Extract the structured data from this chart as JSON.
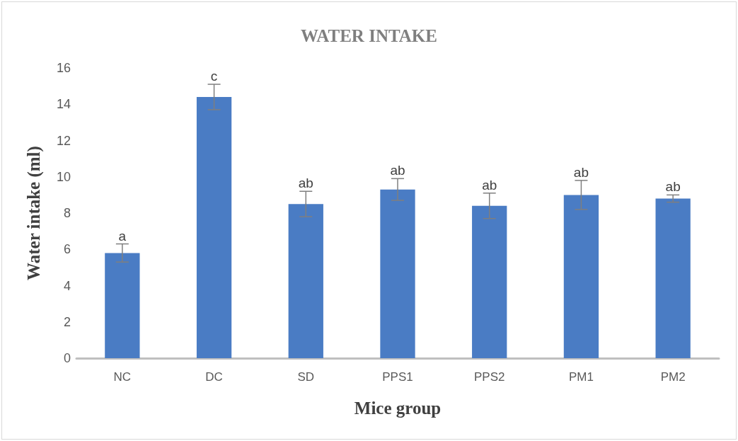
{
  "chart_data": {
    "type": "bar",
    "title": "WATER INTAKE",
    "xlabel": "Mice group",
    "ylabel": "Water intake (ml)",
    "categories": [
      "NC",
      "DC",
      "SD",
      "PPS1",
      "PPS2",
      "PM1",
      "PM2"
    ],
    "values": [
      5.8,
      14.4,
      8.5,
      9.3,
      8.4,
      9.0,
      8.8
    ],
    "errors": [
      0.5,
      0.7,
      0.7,
      0.6,
      0.7,
      0.8,
      0.2
    ],
    "color": "#4a7cc4",
    "ylim": [
      0,
      16
    ],
    "yticks": [
      0,
      2,
      4,
      6,
      8,
      10,
      12,
      14,
      16
    ],
    "grid": false,
    "annotations": [
      "a",
      "c",
      "ab",
      "ab",
      "ab",
      "ab",
      "ab"
    ]
  }
}
